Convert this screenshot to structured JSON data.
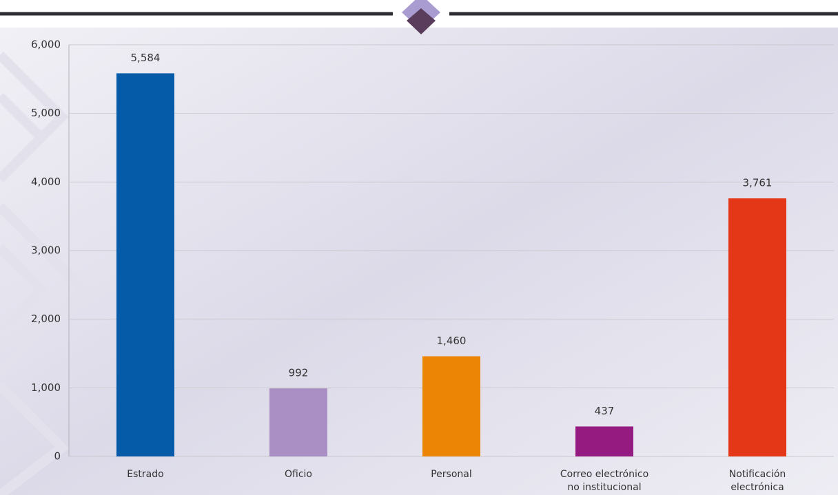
{
  "chart_data": {
    "type": "bar",
    "categories": [
      [
        "Estrado"
      ],
      [
        "Oficio"
      ],
      [
        "Personal"
      ],
      [
        "Correo electrónico",
        "no institucional"
      ],
      [
        "Notificación",
        "electrónica"
      ]
    ],
    "values": [
      5584,
      992,
      1460,
      437,
      3761
    ],
    "value_labels": [
      "5,584",
      "992",
      "1,460",
      "437",
      "3,761"
    ],
    "colors": [
      "#065ba8",
      "#a98fc4",
      "#ec8406",
      "#951b81",
      "#e33718"
    ],
    "ylim": [
      0,
      6000
    ],
    "yticks": [
      0,
      {
        "value": 1000,
        "label": "1,000"
      },
      {
        "value": 2000,
        "label": "2,000"
      },
      {
        "value": 3000,
        "label": "3,000"
      },
      {
        "value": 4000,
        "label": "4,000"
      },
      {
        "value": 5000,
        "label": "5,000"
      },
      {
        "value": 6000,
        "label": "6,000"
      }
    ],
    "grid": true
  }
}
